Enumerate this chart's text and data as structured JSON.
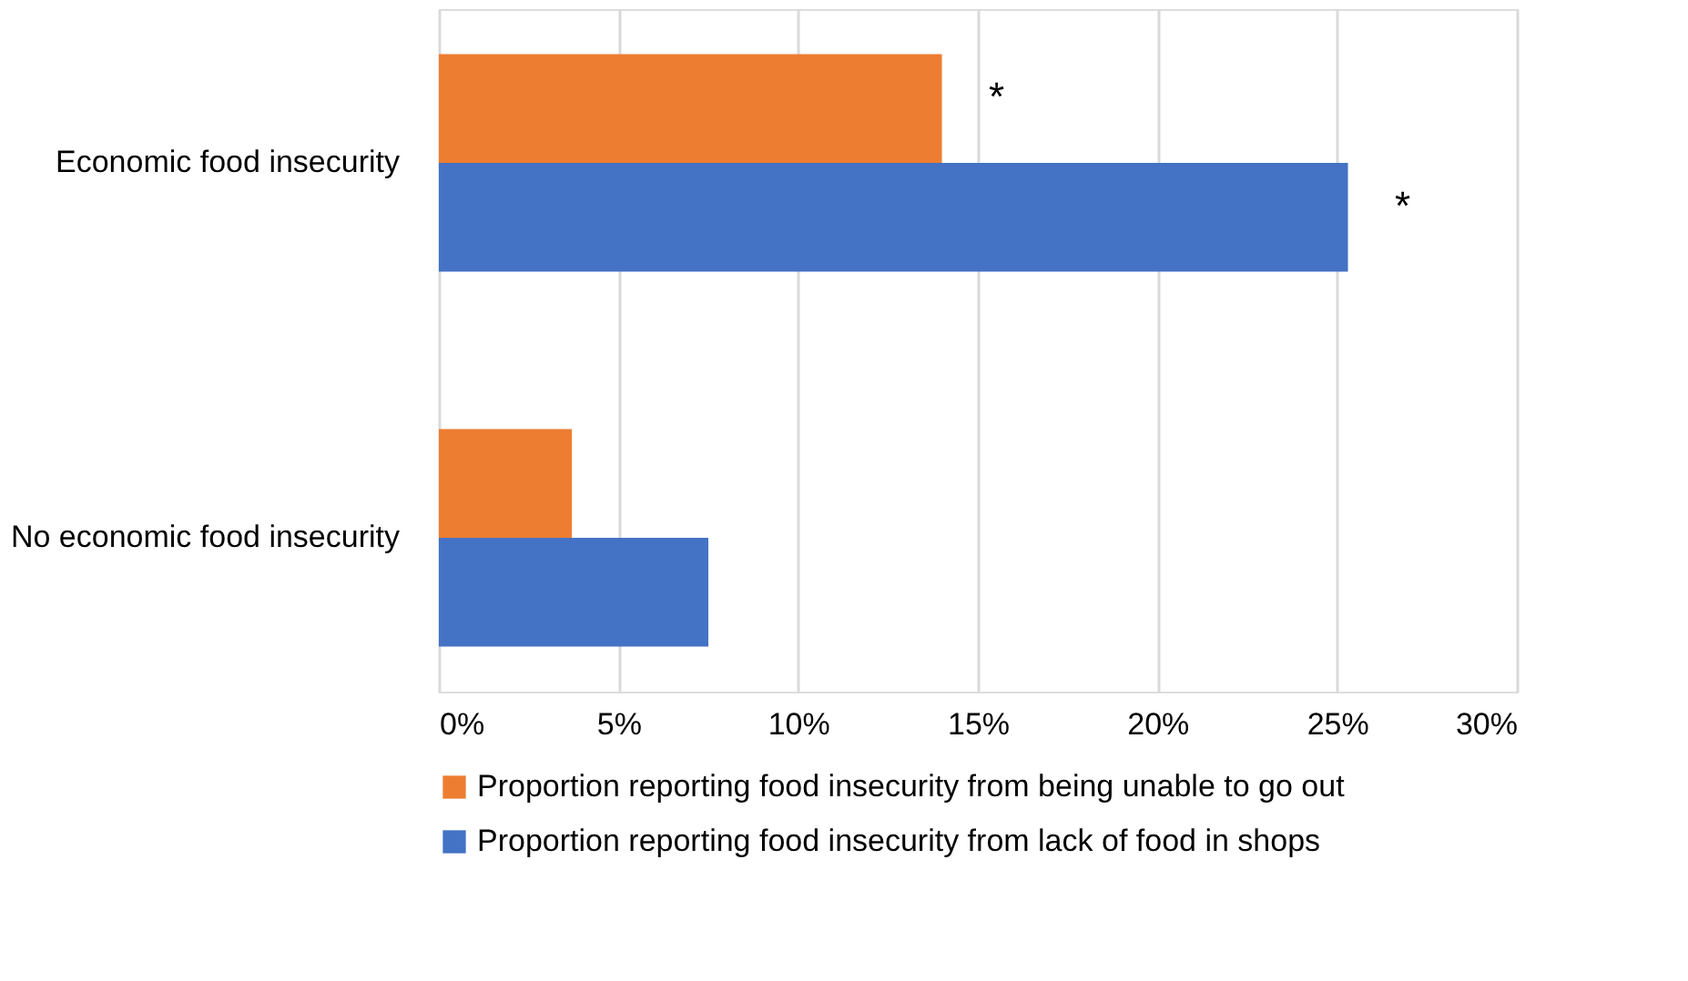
{
  "chart_data": {
    "type": "bar",
    "orientation": "horizontal",
    "categories": [
      "Economic food insecurity",
      "No economic food insecurity"
    ],
    "series": [
      {
        "name": "Proportion reporting food insecurity from being unable to go out",
        "color": "#ed7d31",
        "values": [
          14.0,
          3.7
        ]
      },
      {
        "name": "Proportion reporting food insecurity from lack of food in shops",
        "color": "#4472c4",
        "values": [
          25.3,
          7.5
        ]
      }
    ],
    "xlim": [
      0,
      30
    ],
    "xticks": [
      {
        "value": 0,
        "label": "0%"
      },
      {
        "value": 5,
        "label": "5%"
      },
      {
        "value": 10,
        "label": "10%"
      },
      {
        "value": 15,
        "label": "15%"
      },
      {
        "value": 20,
        "label": "20%"
      },
      {
        "value": 25,
        "label": "25%"
      },
      {
        "value": 30,
        "label": "30%"
      }
    ],
    "grid": "x",
    "legend": "bottom",
    "annotations": [
      "*",
      "*"
    ]
  }
}
